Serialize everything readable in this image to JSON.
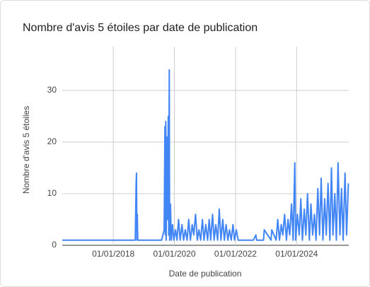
{
  "chart_data": {
    "type": "line",
    "title": "Nombre d'avis 5 étoiles par date de publication",
    "x_label": "Date de publication",
    "y_label": "Nombre d'avis 5 étoiles",
    "color": "#4285f4",
    "grid": true,
    "xlim": [
      "2016-05-01",
      "2025-09-15"
    ],
    "xticks": [
      {
        "value": "2018-01-01",
        "label": "01/01/2018"
      },
      {
        "value": "2020-01-01",
        "label": "01/01/2020"
      },
      {
        "value": "2022-01-01",
        "label": "01/01/2022"
      },
      {
        "value": "2024-01-01",
        "label": "01/01/2024"
      }
    ],
    "ylim": [
      0,
      38.5
    ],
    "yticks": [
      0,
      10,
      20,
      30
    ],
    "x": [
      "2016-05-01",
      "2018-09-20",
      "2018-10-01",
      "2018-10-05",
      "2018-10-10",
      "2018-10-15",
      "2018-10-20",
      "2019-08-01",
      "2019-09-01",
      "2019-09-10",
      "2019-09-15",
      "2019-09-20",
      "2019-09-25",
      "2019-10-01",
      "2019-10-10",
      "2019-10-20",
      "2019-10-25",
      "2019-11-01",
      "2019-11-05",
      "2019-11-15",
      "2019-11-25",
      "2019-12-10",
      "2019-12-25",
      "2020-01-15",
      "2020-02-01",
      "2020-02-20",
      "2020-03-10",
      "2020-04-01",
      "2020-04-20",
      "2020-05-10",
      "2020-06-01",
      "2020-06-20",
      "2020-07-10",
      "2020-08-01",
      "2020-08-20",
      "2020-09-10",
      "2020-10-01",
      "2020-10-20",
      "2020-11-10",
      "2020-12-01",
      "2020-12-20",
      "2021-01-10",
      "2021-02-01",
      "2021-02-20",
      "2021-03-10",
      "2021-04-01",
      "2021-04-20",
      "2021-05-10",
      "2021-06-01",
      "2021-06-20",
      "2021-07-10",
      "2021-08-01",
      "2021-08-20",
      "2021-09-10",
      "2021-10-01",
      "2021-10-20",
      "2021-11-10",
      "2021-12-01",
      "2021-12-20",
      "2022-01-10",
      "2022-02-01",
      "2022-03-01",
      "2022-08-01",
      "2022-09-01",
      "2022-09-10",
      "2022-12-01",
      "2022-12-10",
      "2023-03-01",
      "2023-03-10",
      "2023-05-01",
      "2023-05-20",
      "2023-06-10",
      "2023-07-01",
      "2023-07-20",
      "2023-08-10",
      "2023-09-01",
      "2023-09-20",
      "2023-10-10",
      "2023-11-01",
      "2023-11-20",
      "2023-12-10",
      "2023-12-20",
      "2024-01-10",
      "2024-02-01",
      "2024-02-20",
      "2024-03-10",
      "2024-04-01",
      "2024-04-20",
      "2024-05-10",
      "2024-06-01",
      "2024-06-20",
      "2024-07-10",
      "2024-08-01",
      "2024-08-20",
      "2024-09-10",
      "2024-10-01",
      "2024-10-20",
      "2024-11-10",
      "2024-12-01",
      "2024-12-20",
      "2025-01-10",
      "2025-02-01",
      "2025-02-20",
      "2025-03-10",
      "2025-04-01",
      "2025-04-20",
      "2025-05-10",
      "2025-06-01",
      "2025-06-20",
      "2025-07-10",
      "2025-08-01",
      "2025-08-20",
      "2025-09-10"
    ],
    "values": [
      1,
      1,
      12,
      14,
      1,
      6,
      1,
      1,
      3,
      23,
      2,
      24,
      1,
      21,
      5,
      25,
      2,
      34,
      1,
      8,
      1,
      4,
      1,
      3,
      1,
      5,
      1,
      4,
      1,
      3,
      1,
      5,
      1,
      4,
      2,
      6,
      1,
      3,
      1,
      5,
      1,
      4,
      1,
      5,
      1,
      6,
      1,
      4,
      1,
      7,
      1,
      5,
      1,
      4,
      1,
      3,
      1,
      4,
      1,
      3,
      1,
      1,
      1,
      2,
      1,
      1,
      3,
      1,
      3,
      1,
      5,
      1,
      4,
      2,
      6,
      1,
      5,
      2,
      8,
      1,
      16,
      1,
      6,
      2,
      9,
      1,
      7,
      2,
      10,
      1,
      8,
      2,
      6,
      1,
      11,
      2,
      13,
      1,
      9,
      2,
      12,
      1,
      15,
      2,
      10,
      1,
      16,
      2,
      11,
      1,
      14,
      2,
      12
    ]
  }
}
